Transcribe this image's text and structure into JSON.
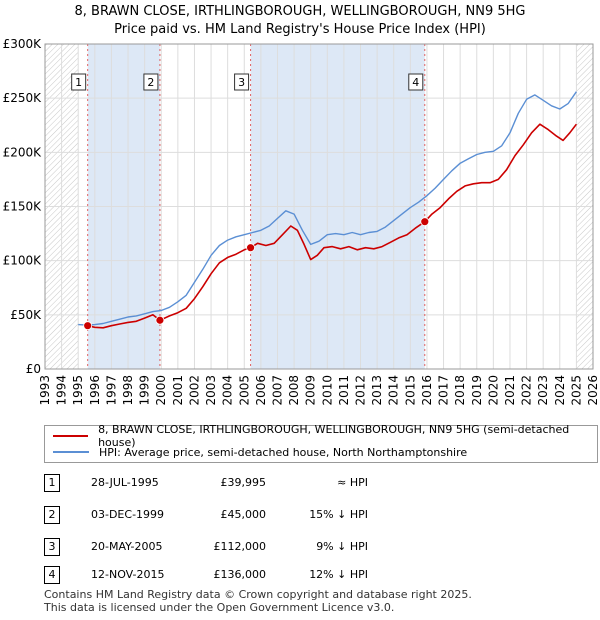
{
  "title_line1": "8, BRAWN CLOSE, IRTHLINGBOROUGH, WELLINGBOROUGH, NN9 5HG",
  "title_line2": "Price paid vs. HM Land Registry's House Price Index (HPI)",
  "chart_data": {
    "type": "line",
    "xlim": [
      1993,
      2026
    ],
    "ylim": [
      0,
      300000
    ],
    "x_ticks": [
      1993,
      1994,
      1995,
      1996,
      1997,
      1998,
      1999,
      2000,
      2001,
      2002,
      2003,
      2004,
      2005,
      2006,
      2007,
      2008,
      2009,
      2010,
      2011,
      2012,
      2013,
      2014,
      2015,
      2016,
      2017,
      2018,
      2019,
      2020,
      2021,
      2022,
      2023,
      2024,
      2025,
      2026
    ],
    "y_ticks": [
      {
        "value": 0,
        "label": "£0"
      },
      {
        "value": 50000,
        "label": "£50K"
      },
      {
        "value": 100000,
        "label": "£100K"
      },
      {
        "value": 150000,
        "label": "£150K"
      },
      {
        "value": 200000,
        "label": "£200K"
      },
      {
        "value": 250000,
        "label": "£250K"
      },
      {
        "value": 300000,
        "label": "£300K"
      }
    ],
    "hatched_ranges": [
      [
        1993,
        1995.0
      ],
      [
        2025.0,
        2026
      ]
    ],
    "shaded_ranges": [
      [
        1995.57,
        1999.92
      ],
      [
        2005.38,
        2015.87
      ]
    ],
    "colors": {
      "price": "#cc0000",
      "hpi": "#5b8fd4",
      "shade": "#dde8f6",
      "vline": "#e06060"
    },
    "series": [
      {
        "name": "8, BRAWN CLOSE, IRTHLINGBOROUGH, WELLINGBOROUGH, NN9 5HG (semi-detached house)",
        "key": "price",
        "x": [
          1995.57,
          1996.0,
          1996.5,
          1997.0,
          1997.5,
          1998.0,
          1998.5,
          1999.0,
          1999.5,
          1999.92,
          2000.5,
          2001.0,
          2001.5,
          2002.0,
          2002.5,
          2003.0,
          2003.5,
          2004.0,
          2004.5,
          2005.0,
          2005.38,
          2005.8,
          2006.3,
          2006.8,
          2007.3,
          2007.8,
          2008.2,
          2008.6,
          2009.0,
          2009.4,
          2009.8,
          2010.3,
          2010.8,
          2011.3,
          2011.8,
          2012.3,
          2012.8,
          2013.3,
          2013.8,
          2014.3,
          2014.8,
          2015.3,
          2015.87,
          2016.3,
          2016.8,
          2017.3,
          2017.8,
          2018.3,
          2018.8,
          2019.3,
          2019.8,
          2020.3,
          2020.8,
          2021.3,
          2021.8,
          2022.3,
          2022.8,
          2023.3,
          2023.8,
          2024.2,
          2024.6,
          2025.0
        ],
        "y": [
          39995,
          38500,
          38000,
          40000,
          41500,
          43000,
          44000,
          47000,
          50000,
          45000,
          49000,
          52000,
          56000,
          65000,
          76000,
          88000,
          98000,
          103000,
          106000,
          110000,
          112000,
          116000,
          114000,
          116000,
          124000,
          132000,
          128000,
          115000,
          101000,
          105000,
          112000,
          113000,
          111000,
          113000,
          110000,
          112000,
          111000,
          113000,
          117000,
          121000,
          124000,
          130000,
          136000,
          143000,
          149000,
          157000,
          164000,
          169000,
          171000,
          172000,
          172000,
          175000,
          184000,
          197000,
          207000,
          218000,
          226000,
          221000,
          215000,
          211000,
          218000,
          226000
        ]
      },
      {
        "name": "HPI: Average price, semi-detached house, North Northamptonshire",
        "key": "hpi",
        "x": [
          1995.0,
          1995.5,
          1996.0,
          1996.5,
          1997.0,
          1997.5,
          1998.0,
          1998.5,
          1999.0,
          1999.5,
          2000.0,
          2000.5,
          2001.0,
          2001.5,
          2002.0,
          2002.5,
          2003.0,
          2003.5,
          2004.0,
          2004.5,
          2005.0,
          2005.5,
          2006.0,
          2006.5,
          2007.0,
          2007.5,
          2008.0,
          2008.5,
          2009.0,
          2009.5,
          2010.0,
          2010.5,
          2011.0,
          2011.5,
          2012.0,
          2012.5,
          2013.0,
          2013.5,
          2014.0,
          2014.5,
          2015.0,
          2015.5,
          2016.0,
          2016.5,
          2017.0,
          2017.5,
          2018.0,
          2018.5,
          2019.0,
          2019.5,
          2020.0,
          2020.5,
          2021.0,
          2021.5,
          2022.0,
          2022.5,
          2023.0,
          2023.5,
          2024.0,
          2024.5,
          2025.0
        ],
        "y": [
          41000,
          40500,
          41000,
          42000,
          44000,
          46000,
          48000,
          49000,
          51000,
          53000,
          54000,
          57000,
          62000,
          68000,
          80000,
          92000,
          105000,
          114000,
          119000,
          122000,
          124000,
          126000,
          128000,
          132000,
          139000,
          146000,
          143000,
          128000,
          115000,
          118000,
          124000,
          125000,
          124000,
          126000,
          124000,
          126000,
          127000,
          131000,
          137000,
          143000,
          149000,
          154000,
          160000,
          167000,
          175000,
          183000,
          190000,
          194000,
          198000,
          200000,
          201000,
          206000,
          218000,
          236000,
          249000,
          253000,
          248000,
          243000,
          240000,
          245000,
          256000
        ]
      }
    ],
    "markers": [
      {
        "label": "1",
        "x": 1995.57,
        "y": 39995
      },
      {
        "label": "2",
        "x": 1999.92,
        "y": 45000
      },
      {
        "label": "3",
        "x": 2005.38,
        "y": 112000
      },
      {
        "label": "4",
        "x": 2015.87,
        "y": 136000
      }
    ]
  },
  "legend": {
    "price_label": "8, BRAWN CLOSE, IRTHLINGBOROUGH, WELLINGBOROUGH, NN9 5HG (semi-detached house)",
    "hpi_label": "HPI: Average price, semi-detached house, North Northamptonshire"
  },
  "transactions": [
    {
      "num": "1",
      "date": "28-JUL-1995",
      "price": "£39,995",
      "hpi": "≈ HPI"
    },
    {
      "num": "2",
      "date": "03-DEC-1999",
      "price": "£45,000",
      "hpi": "15% ↓ HPI"
    },
    {
      "num": "3",
      "date": "20-MAY-2005",
      "price": "£112,000",
      "hpi": "9% ↓ HPI"
    },
    {
      "num": "4",
      "date": "12-NOV-2015",
      "price": "£136,000",
      "hpi": "12% ↓ HPI"
    }
  ],
  "footer_line1": "Contains HM Land Registry data © Crown copyright and database right 2025.",
  "footer_line2": "This data is licensed under the Open Government Licence v3.0."
}
